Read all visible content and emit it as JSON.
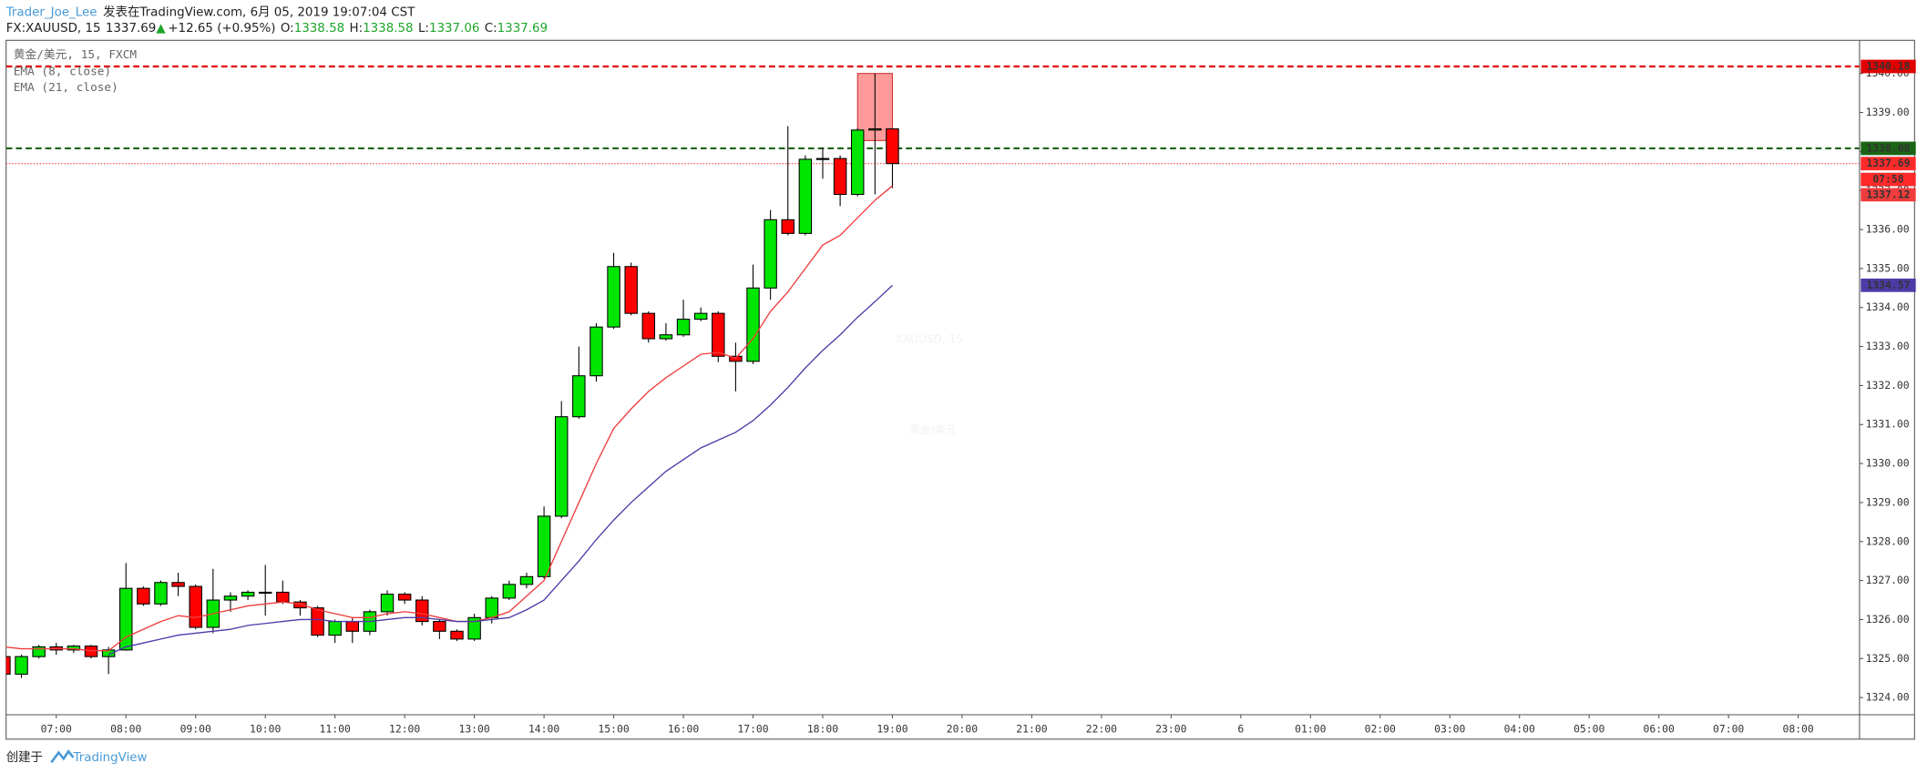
{
  "header": {
    "author": "Trader_Joe_Lee",
    "published": "发表在TradingView.com, 6月 05, 2019 19:07:04 CST",
    "symbol": "FX:XAUUSD, 15",
    "last": "1337.69",
    "arrow": "▲",
    "change": "+12.65 (+0.95%)",
    "ohlc": [
      {
        "label": "O:",
        "value": "1338.58"
      },
      {
        "label": "H:",
        "value": "1338.58"
      },
      {
        "label": "L:",
        "value": "1337.06"
      },
      {
        "label": "C:",
        "value": "1337.69"
      }
    ]
  },
  "footer": {
    "created": "创建于",
    "brand": "TradingView"
  },
  "chart_data": {
    "type": "candlestick",
    "title": "黄金/美元, 15, FXCM",
    "watermark": [
      "XAUUSD, 15",
      "黄金/美元"
    ],
    "x": [
      6.25,
      6.5,
      6.75,
      7,
      7.25,
      7.5,
      7.75,
      8,
      8.25,
      8.5,
      8.75,
      9,
      9.25,
      9.5,
      9.75,
      10,
      10.25,
      10.5,
      10.75,
      11,
      11.25,
      11.5,
      11.75,
      12,
      12.25,
      12.5,
      12.75,
      13,
      13.25,
      13.5,
      13.75,
      14,
      14.25,
      14.5,
      14.75,
      15,
      15.25,
      15.5,
      15.75,
      16,
      16.25,
      16.5,
      16.75,
      17,
      17.25,
      17.5,
      17.75,
      18,
      18.25,
      18.5,
      18.75,
      19
    ],
    "open": [
      1325.05,
      1324.6,
      1325.05,
      1325.3,
      1325.22,
      1325.32,
      1325.05,
      1325.22,
      1326.8,
      1326.4,
      1326.95,
      1326.85,
      1325.8,
      1326.5,
      1326.6,
      1326.7,
      1326.7,
      1326.45,
      1326.3,
      1325.6,
      1325.95,
      1325.7,
      1326.2,
      1326.65,
      1326.5,
      1325.95,
      1325.7,
      1325.5,
      1326.05,
      1326.55,
      1326.9,
      1327.1,
      1328.65,
      1331.2,
      1332.25,
      1333.5,
      1335.05,
      1333.85,
      1333.2,
      1333.3,
      1333.7,
      1333.85,
      1332.75,
      1332.62,
      1334.5,
      1336.25,
      1335.9,
      1337.8,
      1337.82,
      1336.9,
      1338.55,
      1338.58
    ],
    "high": [
      1325.1,
      1325.1,
      1325.35,
      1325.4,
      1325.35,
      1325.35,
      1325.3,
      1327.45,
      1326.85,
      1327.0,
      1327.2,
      1326.9,
      1327.3,
      1326.7,
      1326.75,
      1327.4,
      1327.0,
      1326.5,
      1326.35,
      1326.0,
      1326.05,
      1326.25,
      1326.75,
      1326.7,
      1326.6,
      1326.0,
      1325.75,
      1326.15,
      1326.6,
      1327.0,
      1327.2,
      1328.9,
      1331.6,
      1333.0,
      1333.6,
      1335.4,
      1335.15,
      1333.9,
      1333.6,
      1334.2,
      1334.0,
      1333.9,
      1333.1,
      1335.1,
      1336.5,
      1338.65,
      1337.9,
      1338.1,
      1337.9,
      1338.6,
      1340.0,
      1338.58
    ],
    "low": [
      1324.55,
      1324.5,
      1325.0,
      1325.1,
      1325.15,
      1325.0,
      1324.6,
      1325.2,
      1326.35,
      1326.35,
      1326.6,
      1325.75,
      1325.65,
      1326.2,
      1326.5,
      1326.1,
      1326.4,
      1326.1,
      1325.55,
      1325.4,
      1325.4,
      1325.6,
      1326.1,
      1326.4,
      1325.85,
      1325.5,
      1325.45,
      1325.45,
      1325.9,
      1326.5,
      1326.8,
      1327.05,
      1328.6,
      1331.15,
      1332.1,
      1333.45,
      1333.8,
      1333.1,
      1333.15,
      1333.25,
      1333.65,
      1332.6,
      1331.85,
      1332.55,
      1334.2,
      1335.85,
      1335.85,
      1337.3,
      1336.6,
      1336.85,
      1336.9,
      1337.06
    ],
    "close": [
      1324.6,
      1325.05,
      1325.3,
      1325.22,
      1325.32,
      1325.05,
      1325.22,
      1326.8,
      1326.4,
      1326.95,
      1326.85,
      1325.8,
      1326.5,
      1326.6,
      1326.7,
      1326.7,
      1326.45,
      1326.3,
      1325.6,
      1325.95,
      1325.7,
      1326.2,
      1326.65,
      1326.5,
      1325.95,
      1325.7,
      1325.5,
      1326.05,
      1326.55,
      1326.9,
      1327.1,
      1328.65,
      1331.2,
      1332.25,
      1333.5,
      1335.05,
      1333.85,
      1333.2,
      1333.3,
      1333.7,
      1333.85,
      1332.75,
      1332.62,
      1334.5,
      1336.25,
      1335.9,
      1337.8,
      1337.82,
      1336.9,
      1338.55,
      1338.58,
      1337.69
    ],
    "up_color": "#00e600",
    "down_color": "#ff0000",
    "series": [
      {
        "name": "EMA (8, close)",
        "color": "#f03c3c",
        "values": [
          1325.3,
          1325.25,
          1325.25,
          1325.25,
          1325.25,
          1325.2,
          1325.2,
          1325.55,
          1325.75,
          1325.95,
          1326.1,
          1326.05,
          1326.15,
          1326.25,
          1326.35,
          1326.4,
          1326.45,
          1326.4,
          1326.25,
          1326.15,
          1326.05,
          1326.05,
          1326.15,
          1326.2,
          1326.15,
          1326.05,
          1325.95,
          1325.95,
          1326.05,
          1326.2,
          1326.6,
          1327.0,
          1328.0,
          1329.0,
          1330.0,
          1330.9,
          1331.4,
          1331.85,
          1332.2,
          1332.5,
          1332.8,
          1332.85,
          1332.7,
          1333.2,
          1333.9,
          1334.4,
          1335.0,
          1335.6,
          1335.85,
          1336.3,
          1336.75,
          1337.12
        ]
      },
      {
        "name": "EMA (21, close)",
        "color": "#4b3ca8",
        "values": [
          null,
          null,
          null,
          null,
          null,
          null,
          1325.1,
          1325.3,
          1325.4,
          1325.5,
          1325.6,
          1325.65,
          1325.7,
          1325.75,
          1325.85,
          1325.9,
          1325.95,
          1326.0,
          1326.0,
          1325.95,
          1325.95,
          1325.95,
          1326.0,
          1326.05,
          1326.05,
          1326.0,
          1325.95,
          1325.95,
          1326.0,
          1326.05,
          1326.25,
          1326.5,
          1327.0,
          1327.5,
          1328.05,
          1328.55,
          1329.0,
          1329.4,
          1329.8,
          1330.1,
          1330.4,
          1330.6,
          1330.8,
          1331.1,
          1331.5,
          1331.95,
          1332.45,
          1332.9,
          1333.3,
          1333.75,
          1334.15,
          1334.57
        ]
      }
    ],
    "levels": [
      {
        "value": 1340.18,
        "color": "#e00000",
        "style": "dashed"
      },
      {
        "value": 1338.08,
        "color": "#1a6414",
        "style": "dashed"
      },
      {
        "value": 1337.69,
        "color": "#ff2a2a",
        "style": "dotted"
      }
    ],
    "countdown": "07:58",
    "box": {
      "x": [
        18.5,
        19.0
      ],
      "y": [
        1338.28,
        1340.0
      ],
      "color": "#ff9a9a"
    },
    "xlim": [
      6.28,
      32.88
    ],
    "ylim": [
      1323.56,
      1340.85
    ],
    "xticks": [
      {
        "value": 7,
        "label": "07:00"
      },
      {
        "value": 8,
        "label": "08:00"
      },
      {
        "value": 9,
        "label": "09:00"
      },
      {
        "value": 10,
        "label": "10:00"
      },
      {
        "value": 11,
        "label": "11:00"
      },
      {
        "value": 12,
        "label": "12:00"
      },
      {
        "value": 13,
        "label": "13:00"
      },
      {
        "value": 14,
        "label": "14:00"
      },
      {
        "value": 15,
        "label": "15:00"
      },
      {
        "value": 16,
        "label": "16:00"
      },
      {
        "value": 17,
        "label": "17:00"
      },
      {
        "value": 18,
        "label": "18:00"
      },
      {
        "value": 19,
        "label": "19:00"
      },
      {
        "value": 20,
        "label": "20:00"
      },
      {
        "value": 21,
        "label": "21:00"
      },
      {
        "value": 22,
        "label": "22:00"
      },
      {
        "value": 23,
        "label": "23:00"
      },
      {
        "value": 24,
        "label": "6"
      },
      {
        "value": 25,
        "label": "01:00"
      },
      {
        "value": 26,
        "label": "02:00"
      },
      {
        "value": 27,
        "label": "03:00"
      },
      {
        "value": 28,
        "label": "04:00"
      },
      {
        "value": 29,
        "label": "05:00"
      },
      {
        "value": 30,
        "label": "06:00"
      },
      {
        "value": 31,
        "label": "07:00"
      },
      {
        "value": 32,
        "label": "08:00"
      }
    ],
    "yticks": [
      {
        "value": 1324,
        "label": "1324.00"
      },
      {
        "value": 1325,
        "label": "1325.00"
      },
      {
        "value": 1326,
        "label": "1326.00"
      },
      {
        "value": 1327,
        "label": "1327.00"
      },
      {
        "value": 1328,
        "label": "1328.00"
      },
      {
        "value": 1329,
        "label": "1329.00"
      },
      {
        "value": 1330,
        "label": "1330.00"
      },
      {
        "value": 1331,
        "label": "1331.00"
      },
      {
        "value": 1332,
        "label": "1332.00"
      },
      {
        "value": 1333,
        "label": "1333.00"
      },
      {
        "value": 1334,
        "label": "1334.00"
      },
      {
        "value": 1335,
        "label": "1335.00"
      },
      {
        "value": 1336,
        "label": "1336.00"
      },
      {
        "value": 1337,
        "label": "1337.00"
      },
      {
        "value": 1338,
        "label": "1338.00"
      },
      {
        "value": 1339,
        "label": "1339.00"
      },
      {
        "value": 1340,
        "label": "1340.00"
      }
    ]
  }
}
